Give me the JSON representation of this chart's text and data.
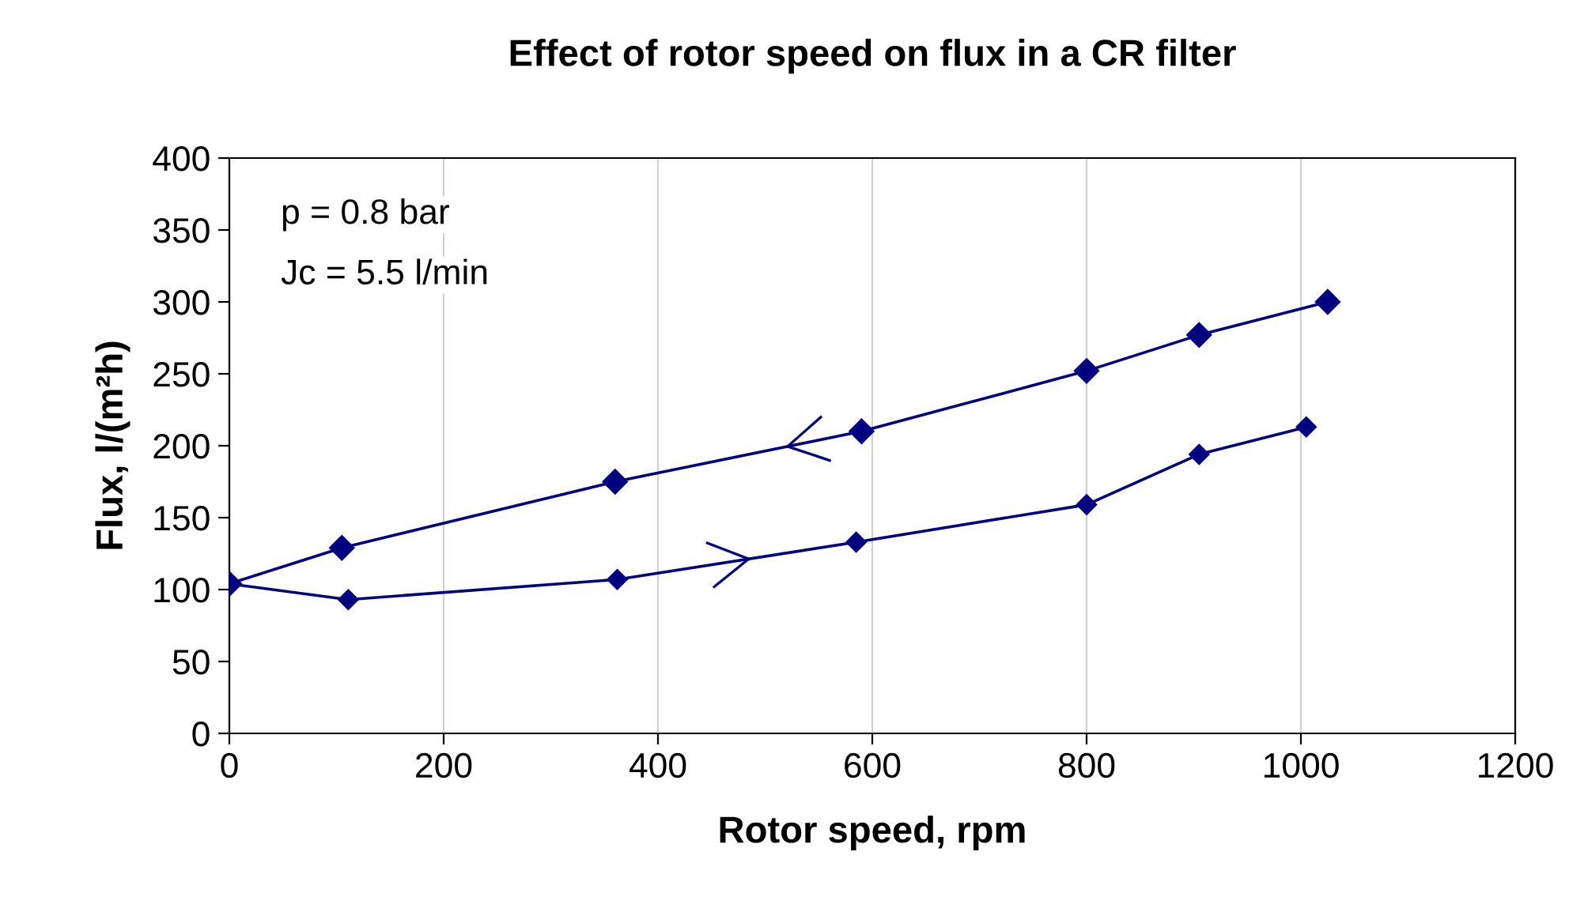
{
  "chart_data": {
    "type": "line",
    "title": "Effect of rotor speed on flux in a CR filter",
    "xlabel": "Rotor speed, rpm",
    "ylabel": "Flux, l/(m²h)",
    "annotations": [
      "p = 0.8 bar",
      "Jc = 5.5 l/min"
    ],
    "series": [
      {
        "color": "#000080",
        "x": [
          0,
          111,
          362,
          585,
          800,
          905,
          1005
        ],
        "values": [
          104,
          93,
          107,
          133,
          159,
          194,
          213
        ]
      },
      {
        "color": "#000080",
        "x": [
          1025,
          905,
          800,
          590,
          360,
          105,
          0
        ],
        "values": [
          300,
          277,
          252,
          210,
          175,
          129,
          104
        ]
      }
    ],
    "xlim": [
      0,
      1200
    ],
    "xticks": [
      0,
      200,
      400,
      600,
      800,
      1000,
      1200
    ],
    "ylim": [
      0,
      400
    ],
    "yticks": [
      0,
      50,
      100,
      150,
      200,
      250,
      300,
      350,
      400
    ],
    "grid": "x",
    "marker": "diamond",
    "line_style": "solid",
    "legend": false
  }
}
